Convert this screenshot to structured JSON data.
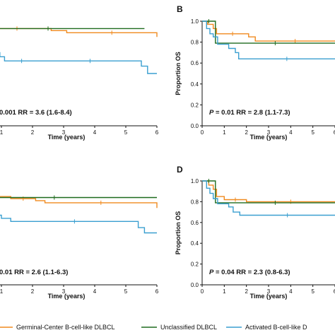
{
  "colors": {
    "germinal": "#f08a1f",
    "unclassified": "#1e6b1e",
    "activated": "#3a9fd0",
    "axis": "#111111"
  },
  "legend": [
    {
      "label": "Germinal-Center B-cell-like DLBCL",
      "color": "#f08a1f"
    },
    {
      "label": "Unclassified DLBCL",
      "color": "#1e6b1e"
    },
    {
      "label": "Activated B-cell-like D",
      "color": "#3a9fd0"
    }
  ],
  "chart_data": [
    {
      "panel": "",
      "type": "line",
      "xlabel": "Time (years)",
      "ylabel": "",
      "xlim": [
        0,
        6
      ],
      "ylim": [
        0,
        1
      ],
      "xticks": [
        "1",
        "2",
        "3",
        "4",
        "5",
        "6"
      ],
      "yticks": [],
      "stat_text": "0.001 RR = 3.6 (1.6-8.4)",
      "series": [
        {
          "name": "Germinal-Center B-cell-like DLBCL",
          "color_key": "germinal",
          "steps": [
            [
              -0.6,
              0.95
            ],
            [
              0.4,
              0.95
            ],
            [
              0.4,
              0.93
            ],
            [
              2.6,
              0.93
            ],
            [
              2.6,
              0.91
            ],
            [
              3.1,
              0.91
            ],
            [
              3.1,
              0.89
            ],
            [
              6,
              0.89
            ],
            [
              6,
              0.85
            ]
          ]
        },
        {
          "name": "Unclassified DLBCL",
          "color_key": "unclassified",
          "steps": [
            [
              -0.6,
              0.93
            ],
            [
              5.6,
              0.93
            ]
          ]
        },
        {
          "name": "Activated B-cell-like DLBCL",
          "color_key": "activated",
          "steps": [
            [
              -0.6,
              0.9
            ],
            [
              -0.2,
              0.9
            ],
            [
              -0.2,
              0.85
            ],
            [
              0.1,
              0.85
            ],
            [
              0.1,
              0.8
            ],
            [
              0.4,
              0.8
            ],
            [
              0.4,
              0.75
            ],
            [
              0.75,
              0.75
            ],
            [
              0.75,
              0.7
            ],
            [
              0.95,
              0.7
            ],
            [
              0.95,
              0.66
            ],
            [
              1.1,
              0.66
            ],
            [
              1.1,
              0.62
            ],
            [
              2.2,
              0.62
            ],
            [
              2.2,
              0.62
            ],
            [
              5.5,
              0.62
            ],
            [
              5.5,
              0.57
            ],
            [
              5.7,
              0.57
            ],
            [
              5.7,
              0.5
            ],
            [
              6,
              0.5
            ]
          ]
        }
      ]
    },
    {
      "panel": "B",
      "type": "line",
      "xlabel": "Time (years)",
      "ylabel": "Proportion OS",
      "xlim": [
        0,
        6
      ],
      "ylim": [
        0,
        1
      ],
      "xticks": [
        "0",
        "1",
        "2",
        "3",
        "4",
        "5",
        "6"
      ],
      "yticks": [
        "0.0",
        "0.2",
        "0.4",
        "0.6",
        "0.8",
        "1.0"
      ],
      "stat_text": "P = 0.01 RR = 2.8 (1.1-7.3)",
      "series": [
        {
          "name": "Germinal-Center B-cell-like DLBCL",
          "color_key": "germinal",
          "steps": [
            [
              0,
              1.0
            ],
            [
              0.25,
              1.0
            ],
            [
              0.25,
              0.97
            ],
            [
              0.5,
              0.97
            ],
            [
              0.5,
              0.93
            ],
            [
              0.65,
              0.93
            ],
            [
              0.65,
              0.88
            ],
            [
              2.1,
              0.88
            ],
            [
              2.1,
              0.85
            ],
            [
              2.4,
              0.85
            ],
            [
              2.4,
              0.81
            ],
            [
              6,
              0.81
            ]
          ]
        },
        {
          "name": "Unclassified DLBCL",
          "color_key": "unclassified",
          "steps": [
            [
              0,
              1.0
            ],
            [
              0.6,
              1.0
            ],
            [
              0.6,
              0.79
            ],
            [
              6,
              0.79
            ]
          ]
        },
        {
          "name": "Activated B-cell-like DLBCL",
          "color_key": "activated",
          "steps": [
            [
              0,
              1.0
            ],
            [
              0.2,
              1.0
            ],
            [
              0.2,
              0.93
            ],
            [
              0.35,
              0.93
            ],
            [
              0.35,
              0.88
            ],
            [
              0.5,
              0.88
            ],
            [
              0.5,
              0.85
            ],
            [
              0.7,
              0.85
            ],
            [
              0.7,
              0.78
            ],
            [
              1.2,
              0.78
            ],
            [
              1.2,
              0.74
            ],
            [
              1.5,
              0.74
            ],
            [
              1.5,
              0.7
            ],
            [
              1.65,
              0.7
            ],
            [
              1.65,
              0.64
            ],
            [
              6,
              0.64
            ]
          ]
        }
      ]
    },
    {
      "panel": "",
      "type": "line",
      "xlabel": "Time (years)",
      "ylabel": "",
      "xlim": [
        0,
        6
      ],
      "ylim": [
        0,
        1
      ],
      "xticks": [
        "1",
        "2",
        "3",
        "4",
        "5",
        "6"
      ],
      "yticks": [],
      "stat_text": "0.01 RR = 2.6 (1.1-6.3)",
      "series": [
        {
          "name": "Germinal-Center B-cell-like DLBCL",
          "color_key": "germinal",
          "steps": [
            [
              -0.6,
              0.87
            ],
            [
              0.4,
              0.87
            ],
            [
              0.4,
              0.85
            ],
            [
              1.3,
              0.85
            ],
            [
              1.3,
              0.83
            ],
            [
              2.1,
              0.83
            ],
            [
              2.1,
              0.81
            ],
            [
              2.4,
              0.81
            ],
            [
              2.4,
              0.79
            ],
            [
              6,
              0.79
            ],
            [
              6,
              0.74
            ]
          ]
        },
        {
          "name": "Unclassified DLBCL",
          "color_key": "unclassified",
          "steps": [
            [
              -0.6,
              0.84
            ],
            [
              6,
              0.84
            ]
          ]
        },
        {
          "name": "Activated B-cell-like DLBCL",
          "color_key": "activated",
          "steps": [
            [
              -0.6,
              0.84
            ],
            [
              -0.2,
              0.84
            ],
            [
              -0.2,
              0.79
            ],
            [
              0.1,
              0.79
            ],
            [
              0.1,
              0.75
            ],
            [
              0.35,
              0.75
            ],
            [
              0.35,
              0.71
            ],
            [
              0.7,
              0.71
            ],
            [
              0.7,
              0.67
            ],
            [
              1.0,
              0.67
            ],
            [
              1.0,
              0.64
            ],
            [
              1.3,
              0.64
            ],
            [
              1.3,
              0.61
            ],
            [
              5.4,
              0.61
            ],
            [
              5.4,
              0.55
            ],
            [
              5.6,
              0.55
            ],
            [
              5.6,
              0.5
            ],
            [
              6,
              0.5
            ]
          ]
        }
      ]
    },
    {
      "panel": "D",
      "type": "line",
      "xlabel": "Time (years)",
      "ylabel": "Proportion OS",
      "xlim": [
        0,
        6
      ],
      "ylim": [
        0,
        1
      ],
      "xticks": [
        "0",
        "1",
        "2",
        "3",
        "4",
        "5",
        "6"
      ],
      "yticks": [
        "0.0",
        "0.2",
        "0.4",
        "0.6",
        "0.8",
        "1.0"
      ],
      "stat_text": "P = 0.04 RR = 2.3 (0.8-6.3)",
      "series": [
        {
          "name": "Germinal-Center B-cell-like DLBCL",
          "color_key": "germinal",
          "steps": [
            [
              0,
              1.0
            ],
            [
              0.3,
              1.0
            ],
            [
              0.3,
              0.96
            ],
            [
              0.5,
              0.96
            ],
            [
              0.5,
              0.92
            ],
            [
              0.65,
              0.92
            ],
            [
              0.65,
              0.85
            ],
            [
              1.0,
              0.85
            ],
            [
              1.0,
              0.82
            ],
            [
              2.0,
              0.82
            ],
            [
              2.0,
              0.8
            ],
            [
              6,
              0.8
            ]
          ]
        },
        {
          "name": "Unclassified DLBCL",
          "color_key": "unclassified",
          "steps": [
            [
              0,
              1.0
            ],
            [
              0.6,
              1.0
            ],
            [
              0.6,
              0.79
            ],
            [
              6,
              0.79
            ]
          ]
        },
        {
          "name": "Activated B-cell-like DLBCL",
          "color_key": "activated",
          "steps": [
            [
              0,
              1.0
            ],
            [
              0.2,
              1.0
            ],
            [
              0.2,
              0.93
            ],
            [
              0.35,
              0.93
            ],
            [
              0.35,
              0.88
            ],
            [
              0.5,
              0.88
            ],
            [
              0.5,
              0.83
            ],
            [
              0.7,
              0.83
            ],
            [
              0.7,
              0.78
            ],
            [
              1.2,
              0.78
            ],
            [
              1.2,
              0.75
            ],
            [
              1.4,
              0.75
            ],
            [
              1.4,
              0.7
            ],
            [
              1.7,
              0.7
            ],
            [
              1.7,
              0.67
            ],
            [
              6,
              0.67
            ]
          ]
        }
      ]
    }
  ]
}
